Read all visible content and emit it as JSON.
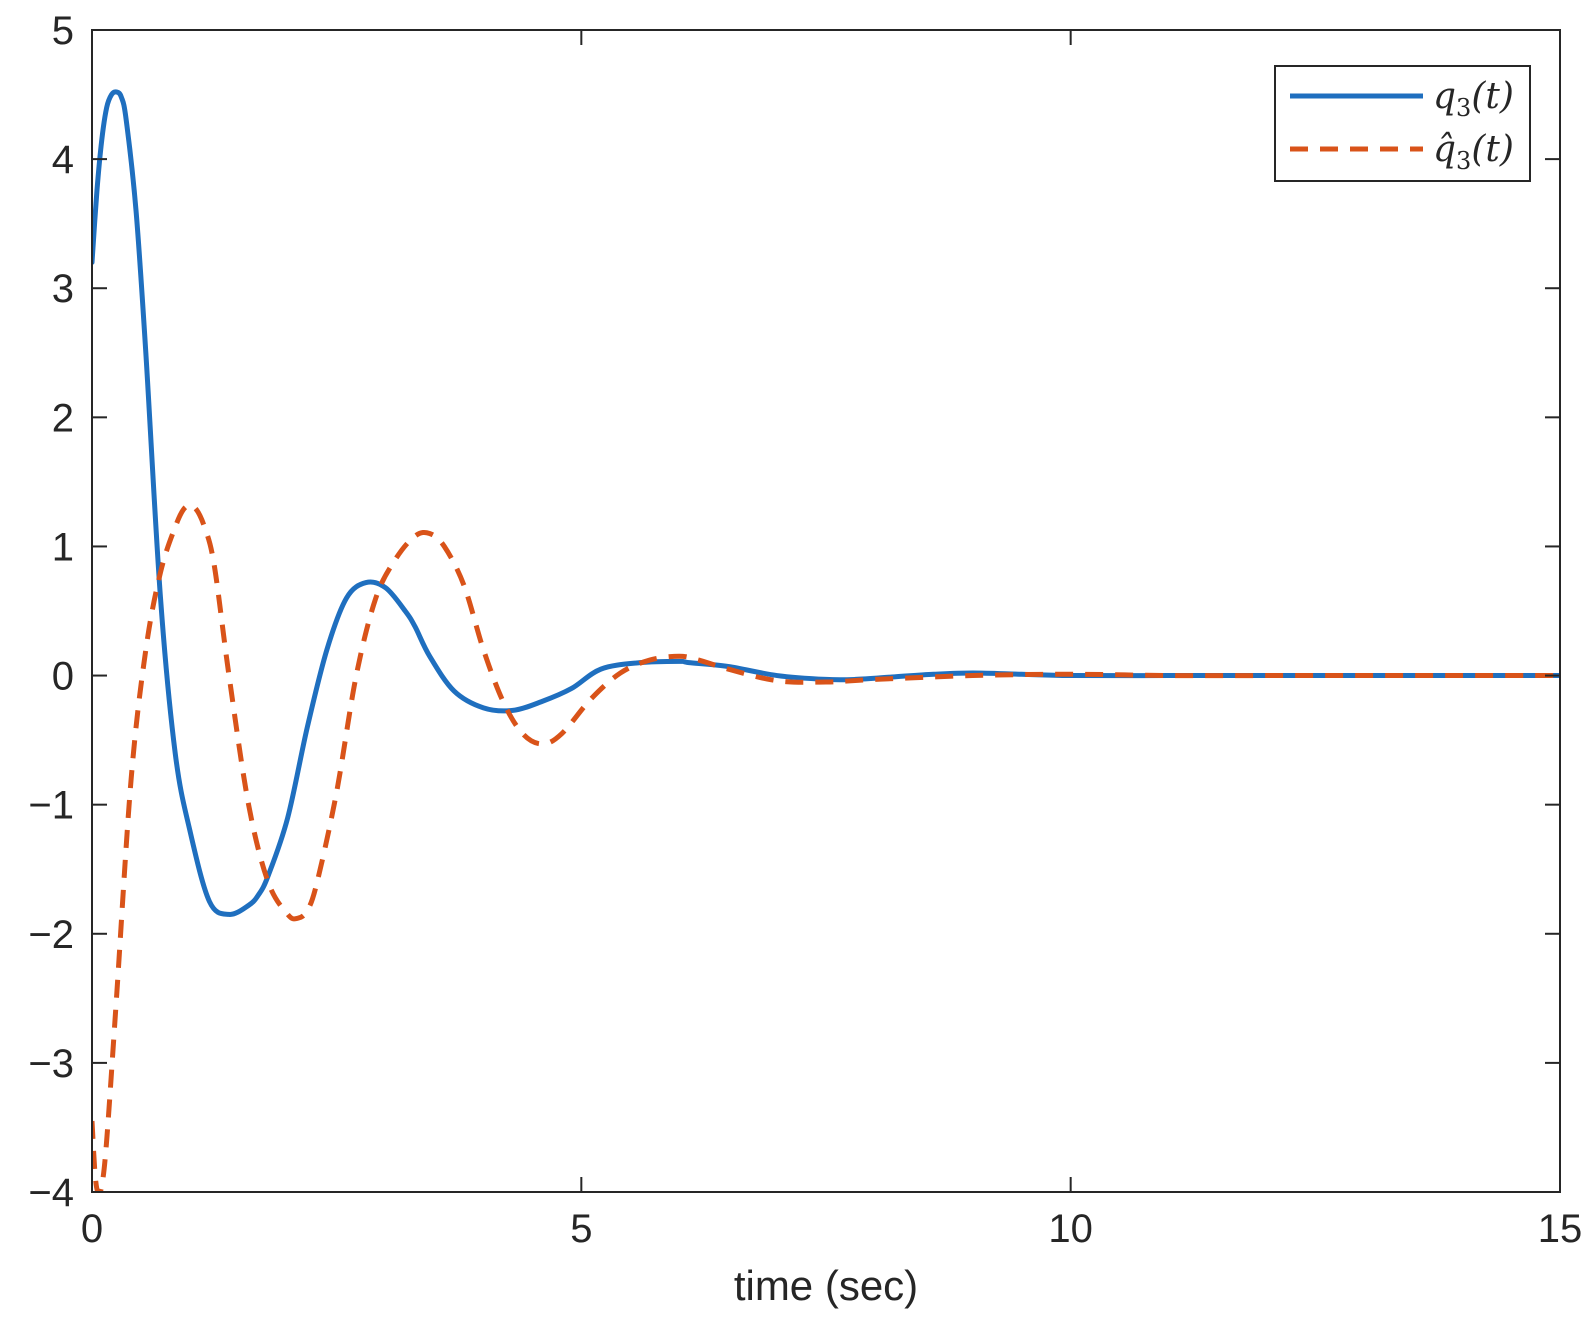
{
  "chart_data": {
    "type": "line",
    "title": "",
    "xlabel": "time (sec)",
    "ylabel": "",
    "xlim": [
      0,
      15
    ],
    "ylim": [
      -4,
      5
    ],
    "xticks": [
      0,
      5,
      10,
      15
    ],
    "xtick_labels": [
      "0",
      "5",
      "10",
      "15"
    ],
    "yticks": [
      -4,
      -3,
      -2,
      -1,
      0,
      1,
      2,
      3,
      4,
      5
    ],
    "ytick_labels": [
      "−4",
      "−3",
      "−2",
      "−1",
      "0",
      "1",
      "2",
      "3",
      "4",
      "5"
    ],
    "grid": false,
    "legend_position": "top-right",
    "series": [
      {
        "name": "q3(t)",
        "legend_main": "q",
        "legend_sub": "3",
        "legend_hat": false,
        "legend_tail": "(t)",
        "color": "#1f6fbf",
        "style": "solid",
        "x": [
          0,
          0.05,
          0.1,
          0.15,
          0.2,
          0.25,
          0.3,
          0.35,
          0.45,
          0.55,
          0.7,
          0.85,
          1.0,
          1.2,
          1.4,
          1.6,
          1.7,
          1.8,
          2.0,
          2.2,
          2.4,
          2.6,
          2.8,
          3.0,
          3.2,
          3.3,
          3.45,
          3.7,
          4.0,
          4.3,
          4.6,
          4.9,
          5.2,
          5.6,
          6.0,
          6.1,
          6.5,
          7.0,
          7.5,
          7.8,
          8.2,
          8.6,
          9.0,
          9.5,
          10.0,
          11.0,
          12.0,
          13.0,
          14.0,
          15.0
        ],
        "y": [
          3.2,
          3.75,
          4.15,
          4.4,
          4.5,
          4.52,
          4.48,
          4.3,
          3.6,
          2.5,
          0.6,
          -0.6,
          -1.2,
          -1.75,
          -1.85,
          -1.78,
          -1.7,
          -1.55,
          -1.1,
          -0.4,
          0.2,
          0.6,
          0.72,
          0.68,
          0.5,
          0.38,
          0.15,
          -0.12,
          -0.25,
          -0.27,
          -0.2,
          -0.1,
          0.05,
          0.1,
          0.11,
          0.1,
          0.07,
          0.0,
          -0.03,
          -0.03,
          -0.01,
          0.01,
          0.02,
          0.01,
          0.0,
          0.0,
          0.0,
          0.0,
          0.0,
          0.0
        ]
      },
      {
        "name": "q̂3(t)",
        "legend_main": "q",
        "legend_sub": "3",
        "legend_hat": true,
        "legend_tail": "(t)",
        "color": "#d95319",
        "style": "dashed",
        "x": [
          0,
          0.03,
          0.06,
          0.1,
          0.15,
          0.25,
          0.4,
          0.55,
          0.7,
          0.85,
          0.95,
          1.05,
          1.15,
          1.25,
          1.4,
          1.6,
          1.8,
          2.0,
          2.1,
          2.2,
          2.3,
          2.5,
          2.7,
          2.9,
          3.1,
          3.3,
          3.45,
          3.6,
          3.8,
          4.0,
          4.2,
          4.4,
          4.6,
          4.8,
          5.1,
          5.4,
          5.7,
          6.0,
          6.2,
          6.5,
          7.0,
          7.5,
          8.0,
          9.0,
          10.0,
          11.0,
          12.0,
          13.0,
          14.0,
          15.0
        ],
        "y": [
          -3.45,
          -3.85,
          -4.0,
          -3.95,
          -3.6,
          -2.5,
          -0.8,
          0.2,
          0.8,
          1.15,
          1.3,
          1.3,
          1.15,
          0.85,
          0.0,
          -1.0,
          -1.6,
          -1.85,
          -1.88,
          -1.82,
          -1.6,
          -0.9,
          0.0,
          0.6,
          0.9,
          1.08,
          1.1,
          1.0,
          0.7,
          0.2,
          -0.2,
          -0.45,
          -0.53,
          -0.45,
          -0.18,
          0.02,
          0.12,
          0.15,
          0.12,
          0.05,
          -0.04,
          -0.05,
          -0.03,
          0.0,
          0.01,
          0.0,
          0.0,
          0.0,
          0.0,
          0.0
        ]
      }
    ]
  }
}
